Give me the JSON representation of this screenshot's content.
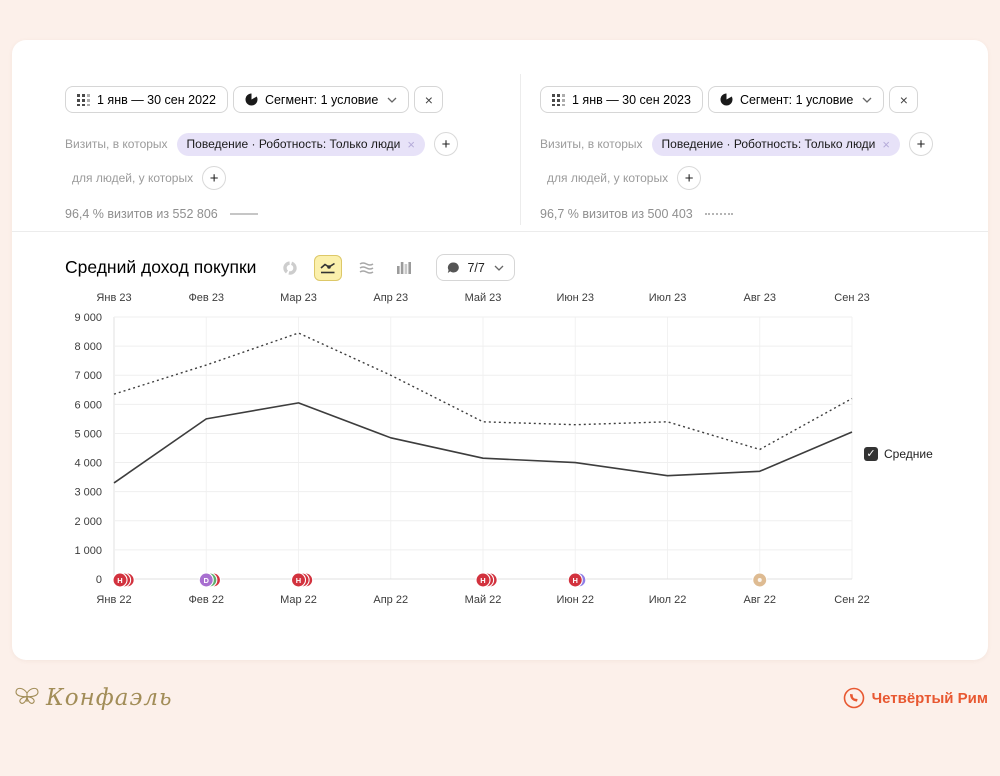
{
  "panels": [
    {
      "date_label": "1 янв — 30 сен 2022",
      "segment_label": "Сегмент: 1 условие",
      "close_label": "×",
      "visits_label": "Визиты, в которых",
      "chip_label": "Поведение · Роботность: Только люди",
      "chip_close": "×",
      "people_label": "для людей, у которых",
      "add_label": "+",
      "stats_text": "96,4 % визитов из 552 806",
      "line_style": "solid"
    },
    {
      "date_label": "1 янв — 30 сен 2023",
      "segment_label": "Сегмент: 1 условие",
      "close_label": "×",
      "visits_label": "Визиты, в которых",
      "chip_label": "Поведение · Роботность: Только люди",
      "chip_close": "×",
      "people_label": "для людей, у которых",
      "add_label": "+",
      "stats_text": "96,7 % визитов из 500 403",
      "line_style": "dotted"
    }
  ],
  "chart": {
    "title": "Средний доход покупки",
    "toolbar_icons": [
      "donut-chart",
      "line-chart",
      "stacked-area",
      "bar-chart"
    ],
    "active_icon": "line-chart",
    "comments_label": "7/7",
    "legend_label": "Средние",
    "legend_checked": true
  },
  "chart_data": {
    "type": "line",
    "categories_top": [
      "Янв 23",
      "Фев 23",
      "Мар 23",
      "Апр 23",
      "Май 23",
      "Июн 23",
      "Июл 23",
      "Авг 23",
      "Сен 23"
    ],
    "categories_bottom": [
      "Янв 22",
      "Фев 22",
      "Мар 22",
      "Апр 22",
      "Май 22",
      "Июн 22",
      "Июл 22",
      "Авг 22",
      "Сен 22"
    ],
    "ylabel": "",
    "ylim": [
      0,
      9000
    ],
    "ytick_step": 1000,
    "grid": true,
    "series": [
      {
        "name": "1 янв — 30 сен 2022",
        "style": "solid",
        "color": "#3d3d3d",
        "values": [
          3300,
          5500,
          6050,
          4850,
          4150,
          4000,
          3550,
          3700,
          5050
        ]
      },
      {
        "name": "1 янв — 30 сен 2023",
        "style": "dotted",
        "color": "#3d3d3d",
        "values": [
          6350,
          7350,
          8450,
          7000,
          5400,
          5300,
          5400,
          4450,
          6200
        ]
      }
    ],
    "comment_markers": [
      {
        "index": 0,
        "letter": "Н",
        "circles": [
          "red",
          "red",
          "red"
        ]
      },
      {
        "index": 1,
        "letter": "D",
        "circles": [
          "purple",
          "green",
          "red"
        ]
      },
      {
        "index": 2,
        "letter": "Н",
        "circles": [
          "red",
          "red",
          "red"
        ]
      },
      {
        "index": 4,
        "letter": "Н",
        "circles": [
          "red",
          "red",
          "red"
        ]
      },
      {
        "index": 5,
        "letter": "Н",
        "circles": [
          "red",
          "violet"
        ]
      },
      {
        "index": 7,
        "letter": "",
        "circles": [
          "tan"
        ]
      }
    ],
    "marker_colors": {
      "red": "#d2323e",
      "green": "#5cae6e",
      "purple": "#a86fd0",
      "violet": "#8f7ce6",
      "tan": "#debb92"
    },
    "axis_color": "#3c3c3c",
    "grid_color": "#efefef"
  },
  "footer": {
    "left_brand": "Конфаэль",
    "right_brand": "Четвёртый Рим",
    "accent_color": "#e85831",
    "gold_color": "#a28d58"
  }
}
